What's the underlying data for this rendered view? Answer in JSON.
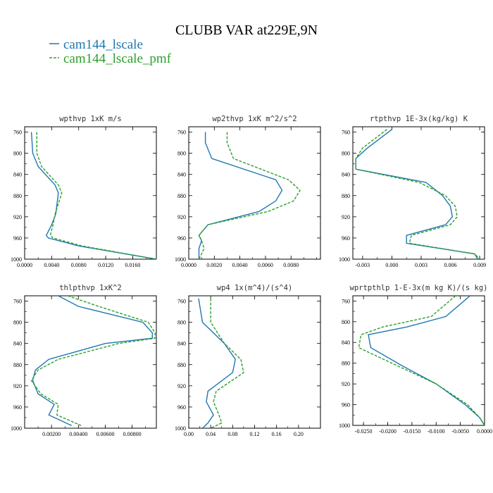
{
  "figure": {
    "title": "CLUBB VAR at229E,9N",
    "legend": [
      {
        "name": "cam144_lscale",
        "color": "#1f77b4",
        "dash": "none"
      },
      {
        "name": "cam144_lscale_pmf",
        "color": "#2ca02c",
        "dash": "4,2"
      }
    ]
  },
  "chart_data": [
    {
      "type": "line",
      "title": "wpthvp  1xK m/s",
      "ylim": [
        1000,
        750
      ],
      "y_inverted": true,
      "yticks": [
        760,
        800,
        840,
        880,
        920,
        960,
        1000
      ],
      "xlim": [
        0,
        0.0195
      ],
      "xticks": [
        0,
        0.004,
        0.008,
        0.012,
        0.016
      ],
      "xtick_labels": [
        "0.0000",
        "0.0040",
        "0.0080",
        "0.0120",
        "0.0160"
      ],
      "y": [
        760,
        800,
        825,
        860,
        875,
        895,
        915,
        935,
        955,
        960,
        975,
        1000
      ],
      "series": [
        {
          "name": "cam144_lscale",
          "x": [
            0.001,
            0.0012,
            0.002,
            0.0045,
            0.005,
            0.0048,
            0.0046,
            0.004,
            0.0032,
            0.0035,
            0.008,
            0.0195
          ]
        },
        {
          "name": "cam144_lscale_pmf",
          "x": [
            0.0018,
            0.0018,
            0.0025,
            0.005,
            0.0055,
            0.005,
            0.0045,
            0.0042,
            0.0038,
            0.0042,
            0.0085,
            0.0195
          ]
        }
      ]
    },
    {
      "type": "line",
      "title": "wp2thvp  1xK m^2/s^2",
      "ylim": [
        1000,
        750
      ],
      "y_inverted": true,
      "yticks": [
        760,
        800,
        840,
        880,
        920,
        960,
        1000
      ],
      "xlim": [
        0,
        0.0103
      ],
      "xticks": [
        0,
        0.002,
        0.004,
        0.006,
        0.008
      ],
      "xtick_labels": [
        "0.0000",
        "0.0020",
        "0.0040",
        "0.0060",
        "0.0080"
      ],
      "y": [
        760,
        780,
        810,
        850,
        870,
        890,
        910,
        935,
        955,
        965,
        980,
        1000
      ],
      "series": [
        {
          "name": "cam144_lscale",
          "x": [
            0.0013,
            0.0013,
            0.0018,
            0.0068,
            0.0073,
            0.0068,
            0.0055,
            0.0015,
            0.0008,
            0.001,
            0.0008,
            0.0008
          ]
        },
        {
          "name": "cam144_lscale_pmf",
          "x": [
            0.003,
            0.003,
            0.0035,
            0.0078,
            0.0087,
            0.0082,
            0.0062,
            0.0015,
            0.0008,
            0.001,
            0.0012,
            0.0008
          ]
        }
      ]
    },
    {
      "type": "line",
      "title": "rtpthvp  1E-3x(kg/kg) K",
      "ylim": [
        1000,
        750
      ],
      "y_inverted": true,
      "yticks": [
        760,
        800,
        840,
        880,
        920,
        960,
        1000
      ],
      "xlim": [
        -0.004,
        0.0095
      ],
      "xticks": [
        -0.003,
        0,
        0.003,
        0.006,
        0.009
      ],
      "xtick_labels": [
        "-0.003",
        "0.000",
        "0.003",
        "0.006",
        "0.009"
      ],
      "y": [
        755,
        790,
        810,
        830,
        855,
        880,
        900,
        920,
        935,
        955,
        970,
        990,
        1000
      ],
      "series": [
        {
          "name": "cam144_lscale",
          "x": [
            0.0,
            -0.0025,
            -0.0037,
            -0.0037,
            0.0035,
            0.0052,
            0.006,
            0.0062,
            0.0055,
            0.0015,
            0.0015,
            0.0085,
            0.0088
          ]
        },
        {
          "name": "cam144_lscale_pmf",
          "x": [
            -0.0005,
            -0.003,
            -0.0037,
            -0.0037,
            0.0028,
            0.0055,
            0.0065,
            0.0067,
            0.006,
            0.002,
            0.0018,
            0.0085,
            0.009
          ]
        }
      ]
    },
    {
      "type": "line",
      "title": "thlpthvp  1xK^2",
      "ylim": [
        1000,
        750
      ],
      "y_inverted": true,
      "yticks": [
        760,
        800,
        840,
        880,
        920,
        960,
        1000
      ],
      "xlim": [
        0,
        0.0098
      ],
      "xticks": [
        0.002,
        0.004,
        0.006,
        0.008
      ],
      "xtick_labels": [
        "0.00200",
        "0.00400",
        "0.00600",
        "0.00800"
      ],
      "y": [
        750,
        770,
        800,
        820,
        830,
        840,
        870,
        890,
        910,
        935,
        955,
        975,
        995
      ],
      "series": [
        {
          "name": "cam144_lscale",
          "x": [
            0.0025,
            0.004,
            0.0088,
            0.0095,
            0.0095,
            0.006,
            0.0018,
            0.0008,
            0.0006,
            0.001,
            0.0022,
            0.0018,
            0.0035
          ]
        },
        {
          "name": "cam144_lscale_pmf",
          "x": [
            0.0032,
            0.0055,
            0.0092,
            0.0097,
            0.0097,
            0.007,
            0.0025,
            0.001,
            0.0005,
            0.0012,
            0.0025,
            0.0024,
            0.0042
          ]
        }
      ]
    },
    {
      "type": "line",
      "title": "wp4  1x(m^4)/(s^4)",
      "ylim": [
        1000,
        750
      ],
      "y_inverted": true,
      "yticks": [
        760,
        800,
        840,
        880,
        920,
        960,
        1000
      ],
      "xlim": [
        0,
        0.24
      ],
      "xticks": [
        0,
        0.04,
        0.08,
        0.12,
        0.16,
        0.2
      ],
      "xtick_labels": [
        "0.00",
        "0.04",
        "0.08",
        "0.12",
        "0.16",
        "0.20"
      ],
      "y": [
        755,
        800,
        840,
        870,
        895,
        930,
        950,
        975,
        990,
        1000
      ],
      "series": [
        {
          "name": "cam144_lscale",
          "x": [
            0.018,
            0.025,
            0.065,
            0.085,
            0.08,
            0.035,
            0.032,
            0.045,
            0.035,
            0.025
          ]
        },
        {
          "name": "cam144_lscale_pmf",
          "x": [
            0.04,
            0.04,
            0.065,
            0.095,
            0.1,
            0.05,
            0.045,
            0.055,
            0.06,
            0.04
          ]
        }
      ]
    },
    {
      "type": "line",
      "title": "wprtpthlp  1-E-3x(m kg K)/(s kg)",
      "ylim": [
        1000,
        750
      ],
      "y_inverted": true,
      "yticks": [
        760,
        800,
        840,
        880,
        920,
        960,
        1000
      ],
      "xlim": [
        -0.0272,
        0.0
      ],
      "xticks": [
        -0.025,
        -0.02,
        -0.015,
        -0.01,
        -0.005,
        0
      ],
      "xtick_labels": [
        "-0.0250",
        "-0.0200",
        "-0.0150",
        "-0.0100",
        "-0.0050",
        "0.0000"
      ],
      "y": [
        750,
        790,
        810,
        825,
        850,
        885,
        920,
        960,
        985,
        1000
      ],
      "series": [
        {
          "name": "cam144_lscale",
          "x": [
            -0.003,
            -0.008,
            -0.016,
            -0.024,
            -0.0235,
            -0.017,
            -0.01,
            -0.004,
            -0.001,
            0.0
          ]
        },
        {
          "name": "cam144_lscale_pmf",
          "x": [
            -0.006,
            -0.011,
            -0.021,
            -0.0255,
            -0.026,
            -0.018,
            -0.01,
            -0.0035,
            -0.001,
            0.0
          ]
        }
      ]
    }
  ]
}
